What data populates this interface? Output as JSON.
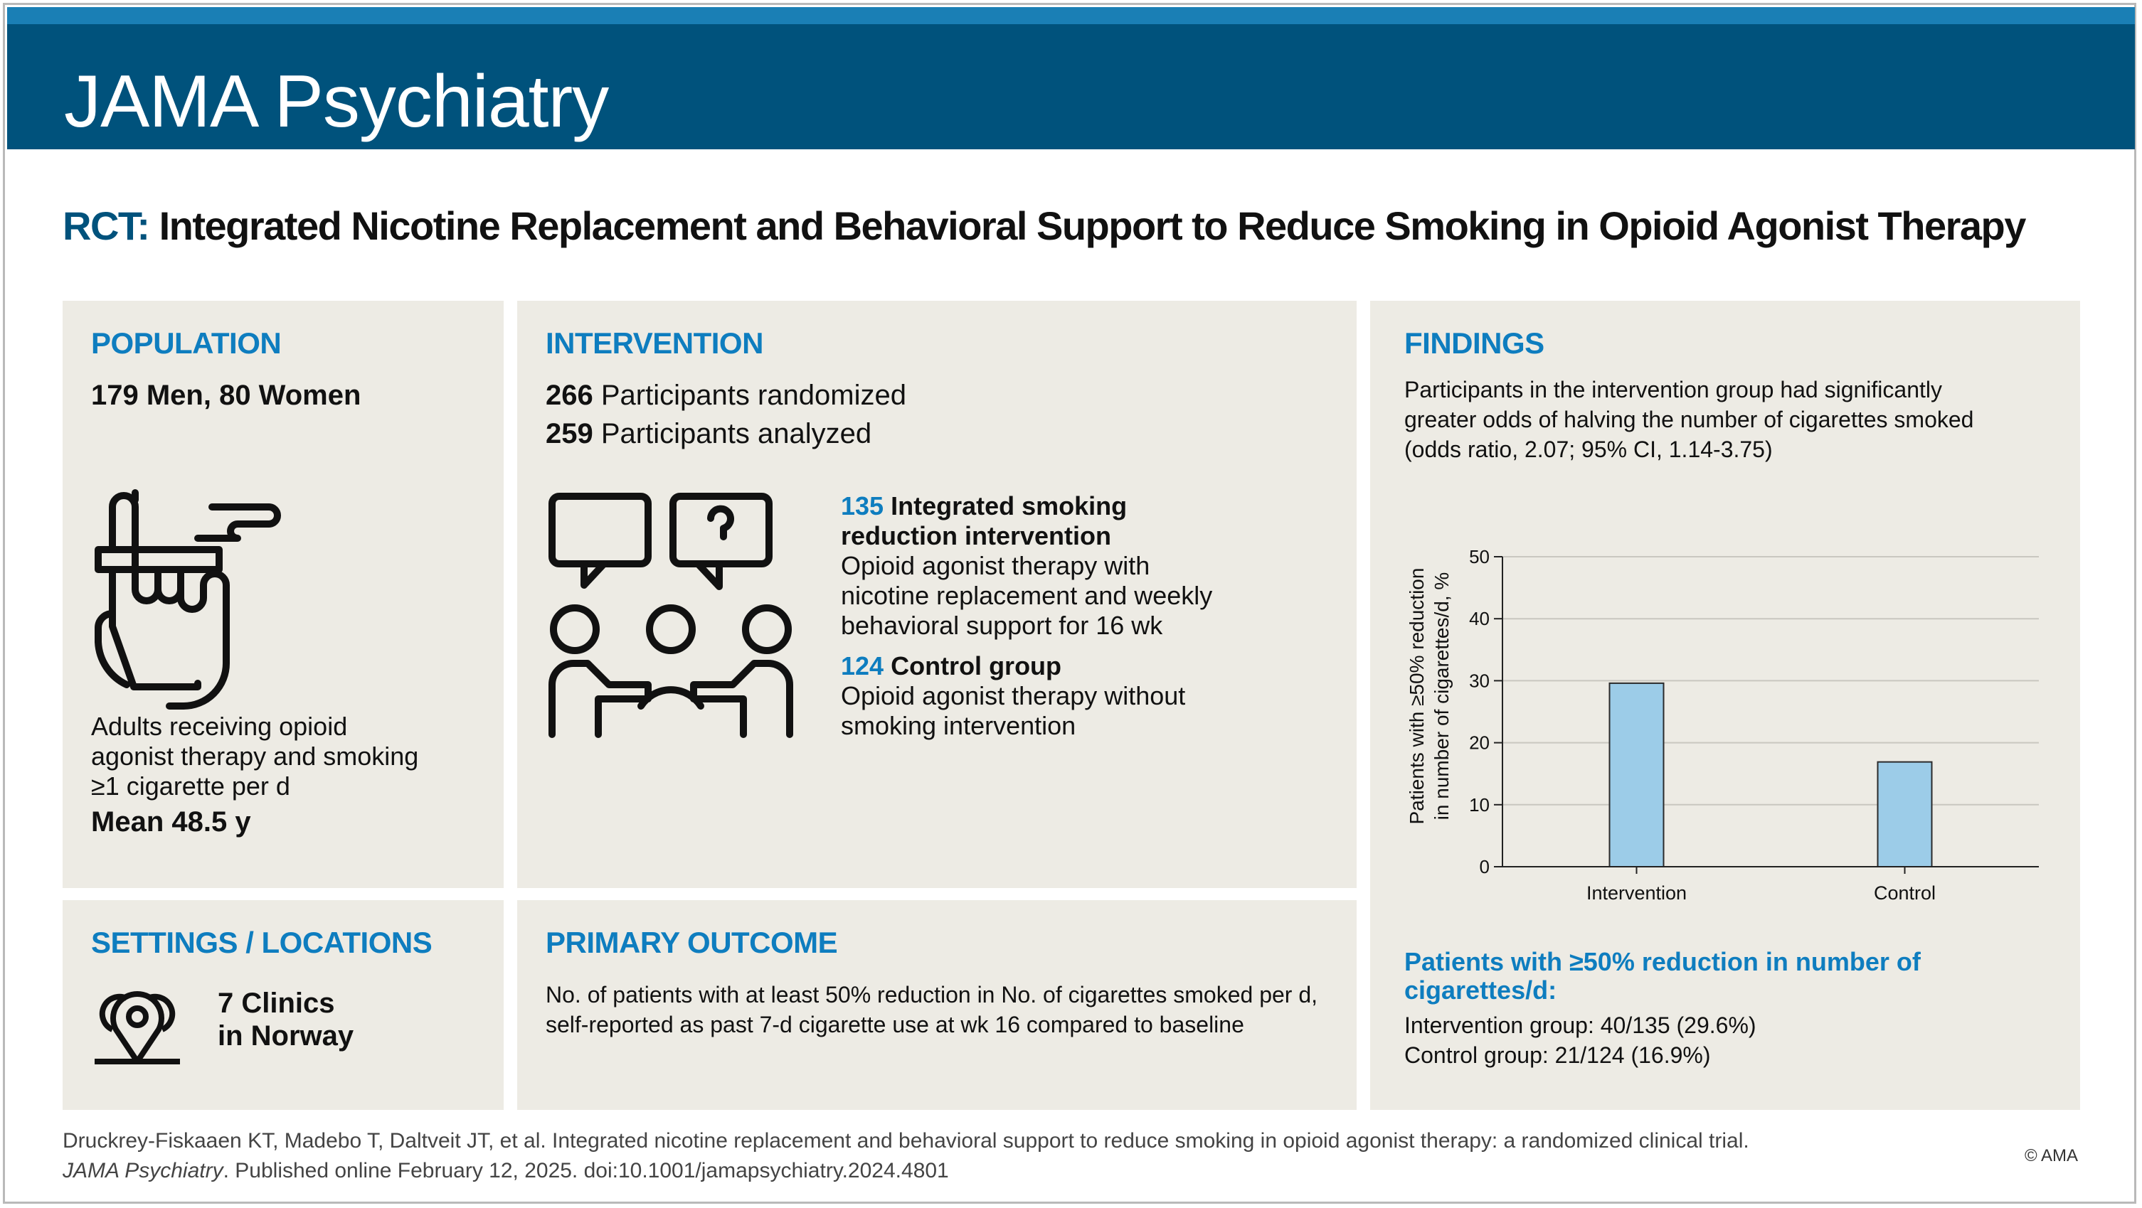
{
  "header": {
    "journal": "JAMA Psychiatry"
  },
  "headline": {
    "lead": "RCT:",
    "title": "Integrated Nicotine Replacement and Behavioral Support to Reduce Smoking in Opioid Agonist Therapy"
  },
  "population": {
    "title": "POPULATION",
    "sex": "179 Men, 80 Women",
    "description": "Adults receiving opioid agonist therapy and smoking ≥1 cigarette per d",
    "age": "Mean 48.5 y",
    "icon": "hand-cigarette-icon"
  },
  "intervention": {
    "title": "INTERVENTION",
    "randomized_n": "266",
    "randomized_label": "Participants randomized",
    "analyzed_n": "259",
    "analyzed_label": "Participants analyzed",
    "icon": "group-discussion-icon",
    "arm1_n": "135",
    "arm1_title": "Integrated smoking reduction intervention",
    "arm1_desc": "Opioid agonist therapy with nicotine replacement and weekly behavioral support for 16 wk",
    "arm2_n": "124",
    "arm2_title": "Control group",
    "arm2_desc": "Opioid agonist therapy without smoking intervention"
  },
  "settings": {
    "title": "SETTINGS / LOCATIONS",
    "line1": "7 Clinics",
    "line2": "in Norway",
    "icon": "map-pins-icon"
  },
  "outcome": {
    "title": "PRIMARY OUTCOME",
    "text": "No. of patients with at least 50% reduction in No. of cigarettes smoked per d, self-reported as past 7-d cigarette use at wk 16 compared to baseline"
  },
  "findings": {
    "title": "FINDINGS",
    "summary": "Participants in the intervention group had significantly greater odds of halving the number of cigarettes smoked (odds ratio, 2.07; 95% CI, 1.14-3.75)",
    "result_title": "Patients with ≥50% reduction in number of cigarettes/d:",
    "result_intervention": "Intervention group: 40/135 (29.6%)",
    "result_control": "Control group: 21/124 (16.9%)"
  },
  "chart_data": {
    "type": "bar",
    "categories": [
      "Intervention",
      "Control"
    ],
    "values": [
      29.6,
      16.9
    ],
    "ylabel_line1": "Patients with ≥50% reduction",
    "ylabel_line2": "in number of cigarettes/d, %",
    "ylim": [
      0,
      50
    ],
    "yticks": [
      0,
      10,
      20,
      30,
      40,
      50
    ],
    "grid": true,
    "bar_color": "#9ccce8",
    "bar_stroke": "#2a2a2a"
  },
  "footer": {
    "citation": "Druckrey-Fiskaaen KT, Madebo T, Daltveit JT, et al. Integrated nicotine replacement and behavioral support to reduce smoking in opioid agonist therapy: a randomized clinical trial.",
    "journal": "JAMA Psychiatry",
    "published": ". Published online February 12, 2025. doi:10.1001/jamapsychiatry.2024.4801",
    "copyright": "© AMA"
  }
}
